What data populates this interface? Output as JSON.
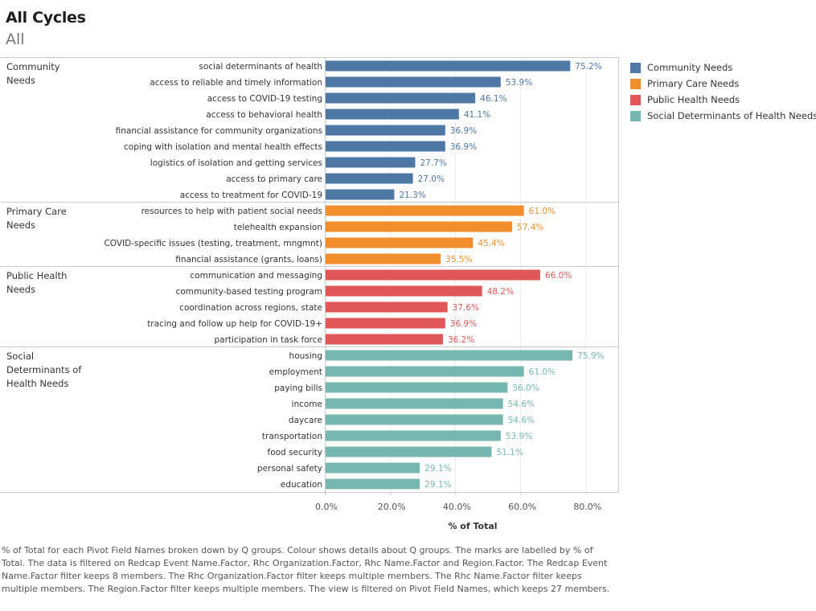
{
  "header": {
    "title": "All Cycles",
    "subtitle": "All"
  },
  "legend": [
    {
      "label": "Community Needs",
      "color": "#4e79a7"
    },
    {
      "label": "Primary Care Needs",
      "color": "#f28e2b"
    },
    {
      "label": "Public Health Needs",
      "color": "#e15759"
    },
    {
      "label": "Social Determinants of Health Needs",
      "color": "#76b7b2"
    }
  ],
  "caption": "% of Total for each Pivot Field Names broken down by Q groups.  Colour shows details about Q groups.  The marks are labelled by % of Total. The data is filtered on Redcap Event Name.Factor, Rhc Organization.Factor, Rhc Name.Factor and Region.Factor. The Redcap Event Name.Factor filter keeps 8 members. The Rhc Organization.Factor filter keeps multiple members. The Rhc Name.Factor filter keeps multiple members. The Region.Factor filter keeps multiple members. The view is filtered on Pivot Field Names, which keeps 27 members.",
  "chart_data": {
    "type": "bar",
    "orientation": "horizontal",
    "title": "All Cycles",
    "subtitle": "All",
    "xlabel": "% of Total",
    "ylabel": "",
    "xlim": [
      0,
      90
    ],
    "xticks": [
      0,
      20,
      40,
      60,
      80
    ],
    "xtick_labels": [
      "0.0%",
      "20.0%",
      "40.0%",
      "60.0%",
      "80.0%"
    ],
    "grid": true,
    "legend_position": "top-right",
    "groups": [
      {
        "name": "Community Needs",
        "label_lines": [
          "Community",
          "Needs"
        ],
        "color": "#4e79a7",
        "categories": [
          "social determinants of health",
          "access to reliable and timely information",
          "access to COVID-19 testing",
          "access to behavioral health",
          "financial assistance for community organizations",
          "coping with isolation and mental health effects",
          "logistics of isolation and getting services",
          "access to primary care",
          "access to treatment for COVID-19"
        ],
        "values": [
          75.2,
          53.9,
          46.1,
          41.1,
          36.9,
          36.9,
          27.7,
          27.0,
          21.3
        ]
      },
      {
        "name": "Primary Care Needs",
        "label_lines": [
          "Primary Care",
          "Needs"
        ],
        "color": "#f28e2b",
        "categories": [
          "resources to help with patient social needs",
          "telehealth expansion",
          "COVID-specific issues (testing, treatment, mngmnt)",
          "financial assistance (grants, loans)"
        ],
        "values": [
          61.0,
          57.4,
          45.4,
          35.5
        ]
      },
      {
        "name": "Public Health Needs",
        "label_lines": [
          "Public Health",
          "Needs"
        ],
        "color": "#e15759",
        "categories": [
          "communication and messaging",
          "community-based testing program",
          "coordination across regions, state",
          "tracing and follow up help for COVID-19+",
          "participation in task force"
        ],
        "values": [
          66.0,
          48.2,
          37.6,
          36.9,
          36.2
        ]
      },
      {
        "name": "Social Determinants of Health Needs",
        "label_lines": [
          "Social",
          "Determinants of",
          "Health Needs"
        ],
        "color": "#76b7b2",
        "categories": [
          "housing",
          "employment",
          "paying bills",
          "income",
          "daycare",
          "transportation",
          "food security",
          "personal safety",
          "education"
        ],
        "values": [
          75.9,
          61.0,
          56.0,
          54.6,
          54.6,
          53.9,
          51.1,
          29.1,
          29.1
        ]
      }
    ]
  }
}
